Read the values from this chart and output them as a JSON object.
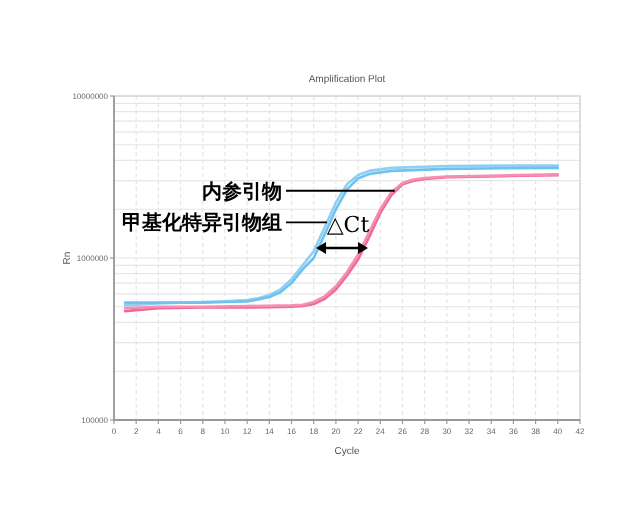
{
  "chart_data": {
    "type": "line",
    "title": "Amplification Plot",
    "xlabel": "Cycle",
    "ylabel": "Rn",
    "log": "y",
    "grid": true,
    "xlim": [
      0,
      42
    ],
    "ylim": [
      100000,
      10000000
    ],
    "xticks": [
      0,
      2,
      4,
      6,
      8,
      10,
      12,
      14,
      16,
      18,
      20,
      22,
      24,
      26,
      28,
      30,
      32,
      34,
      36,
      38,
      40,
      42
    ],
    "yticks": [
      100000,
      1000000,
      10000000
    ],
    "series": [
      {
        "color": "#8fd0f2",
        "x": [
          1,
          4,
          8,
          10,
          12,
          13,
          14,
          15,
          16,
          17,
          18,
          19,
          20,
          21,
          22,
          23,
          25,
          30,
          35,
          40
        ],
        "values": [
          510000,
          525000,
          535000,
          540000,
          550000,
          565000,
          590000,
          640000,
          740000,
          900000,
          1100000,
          1550000,
          2200000,
          2850000,
          3250000,
          3450000,
          3600000,
          3700000,
          3720000,
          3720000
        ]
      },
      {
        "color": "#6fc2ee",
        "x": [
          1,
          4,
          8,
          10,
          12,
          13,
          14,
          15,
          16,
          17,
          18,
          19,
          20,
          21,
          22,
          23,
          25,
          30,
          35,
          40
        ],
        "values": [
          530000,
          530000,
          530000,
          535000,
          540000,
          555000,
          575000,
          615000,
          700000,
          850000,
          1000000,
          1400000,
          2000000,
          2650000,
          3100000,
          3300000,
          3450000,
          3550000,
          3580000,
          3600000
        ]
      },
      {
        "color": "#f0679a",
        "x": [
          1,
          4,
          8,
          12,
          16,
          17,
          18,
          19,
          20,
          21,
          22,
          23,
          24,
          25,
          26,
          27,
          28,
          30,
          35,
          40
        ],
        "values": [
          470000,
          490000,
          495000,
          495000,
          500000,
          505000,
          520000,
          560000,
          640000,
          780000,
          980000,
          1350000,
          1900000,
          2450000,
          2850000,
          3000000,
          3080000,
          3150000,
          3200000,
          3250000
        ]
      },
      {
        "color": "#f58db5",
        "x": [
          1,
          4,
          8,
          12,
          16,
          17,
          18,
          19,
          20,
          21,
          22,
          23,
          24,
          25,
          26,
          27,
          28,
          30,
          35,
          40
        ],
        "values": [
          490000,
          500000,
          500000,
          505000,
          510000,
          515000,
          535000,
          580000,
          670000,
          820000,
          1050000,
          1450000,
          2000000,
          2550000,
          2900000,
          3050000,
          3120000,
          3180000,
          3230000,
          3280000
        ]
      }
    ],
    "annotations": [
      {
        "text": "内参引物",
        "x": 25.3,
        "y": 2600000
      },
      {
        "text": "甲基化特异引物组",
        "x": 19.2,
        "y": 1660000
      },
      "△Ct"
    ]
  }
}
